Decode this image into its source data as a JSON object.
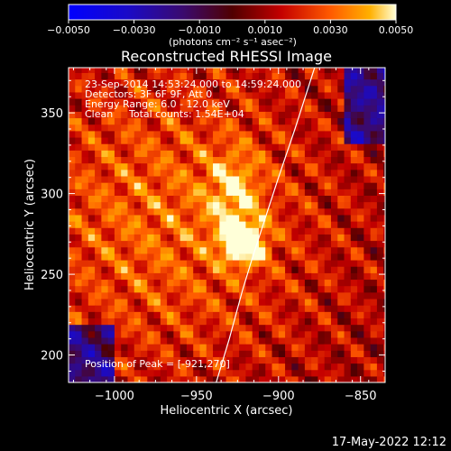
{
  "chart_data": {
    "type": "heatmap",
    "title": "Reconstructed RHESSI Image",
    "xlabel": "Heliocentric X (arcsec)",
    "ylabel": "Heliocentric Y (arcsec)",
    "xlim": [
      -1028,
      -835
    ],
    "ylim": [
      183,
      378
    ],
    "x_ticks": [
      -1000,
      -950,
      -900,
      -850
    ],
    "x_tick_labels": [
      "−1000",
      "−950",
      "−900",
      "−850"
    ],
    "y_ticks": [
      200,
      250,
      300,
      350
    ],
    "y_tick_labels": [
      "200",
      "250",
      "300",
      "350"
    ],
    "colorbar": {
      "min": -0.005,
      "max": 0.005,
      "ticks": [
        -0.005,
        -0.003,
        -0.001,
        0.001,
        0.003,
        0.005
      ],
      "tick_labels": [
        "−0.0050",
        "−0.0030",
        "−0.0010",
        "0.0010",
        "0.0030",
        "0.0050"
      ],
      "unit_label": "(photons cm⁻² s⁻¹ asec⁻²)"
    },
    "annotations": {
      "time_range": "23-Sep-2014 14:53:24.000 to 14:59:24.000",
      "detectors": "Detectors: 3F 6F 9F, Att 0",
      "energy": "Energy Range: 6.0 - 12.0 keV",
      "method": "Clean",
      "total_counts": "Total counts: 1.54E+04",
      "peak": "Position of Peak = [-921,270]"
    },
    "peak": {
      "x": -921,
      "y": 270,
      "value": 0.005
    },
    "limb_curve": [
      [
        -938,
        183
      ],
      [
        -930,
        210
      ],
      [
        -922,
        240
      ],
      [
        -916,
        260
      ],
      [
        -908,
        285
      ],
      [
        -900,
        310
      ],
      [
        -890,
        340
      ],
      [
        -878,
        378
      ]
    ],
    "grid_cell_arcsec": 4
  },
  "footer": {
    "timestamp": "17-May-2022 12:12"
  },
  "colors": {
    "background": "#000000",
    "axes": "#ffffff",
    "limb": "#ffffff"
  }
}
